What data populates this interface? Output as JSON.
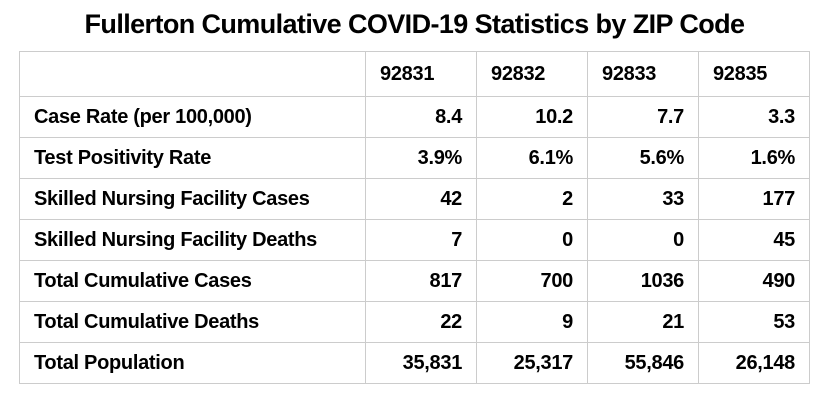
{
  "page_title": "Fullerton Cumulative COVID-19 Statistics by ZIP Code",
  "chart_data": {
    "type": "table",
    "title": "Fullerton Cumulative COVID-19 Statistics by ZIP Code",
    "corner_label": "",
    "column_headers": [
      "92831",
      "92832",
      "92833",
      "92835"
    ],
    "rows": [
      {
        "label": "Case Rate (per 100,000)",
        "values": [
          "8.4",
          "10.2",
          "7.7",
          "3.3"
        ]
      },
      {
        "label": "Test Positivity Rate",
        "values": [
          "3.9%",
          "6.1%",
          "5.6%",
          "1.6%"
        ]
      },
      {
        "label": "Skilled Nursing Facility Cases",
        "values": [
          "42",
          "2",
          "33",
          "177"
        ]
      },
      {
        "label": "Skilled Nursing Facility Deaths",
        "values": [
          "7",
          "0",
          "0",
          "45"
        ]
      },
      {
        "label": "Total Cumulative Cases",
        "values": [
          "817",
          "700",
          "1036",
          "490"
        ]
      },
      {
        "label": "Total Cumulative Deaths",
        "values": [
          "22",
          "9",
          "21",
          "53"
        ]
      },
      {
        "label": "Total Population",
        "values": [
          "35,831",
          "25,317",
          "55,846",
          "26,148"
        ]
      }
    ]
  },
  "colors": {
    "background": "#ffffff",
    "text": "#000000",
    "border": "#cccccc"
  }
}
